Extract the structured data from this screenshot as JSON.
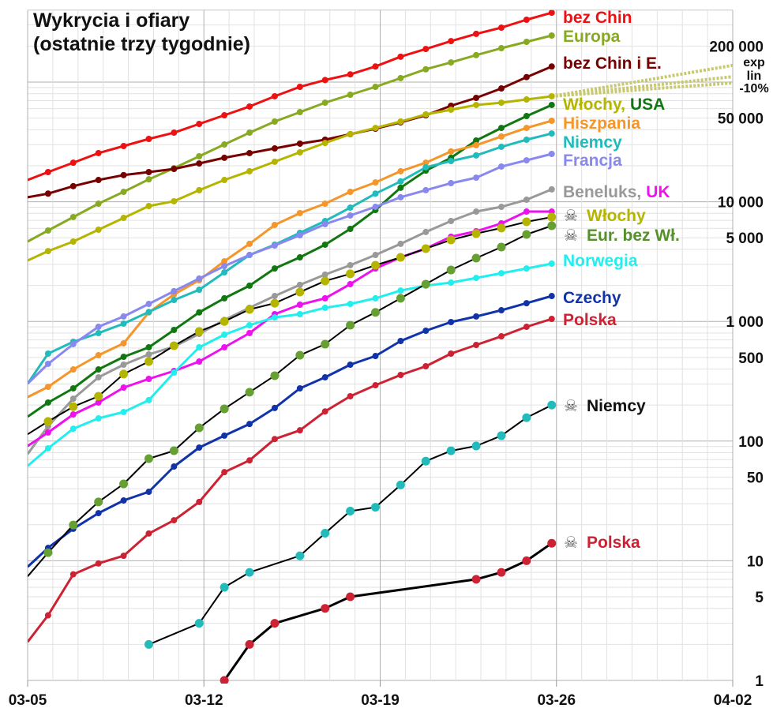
{
  "chart_data": {
    "type": "line",
    "title": "Wykrycia i ofiary",
    "subtitle": "(ostatnie trzy tygodnie)",
    "y_scale": "log",
    "ylim": [
      1,
      400000
    ],
    "xlim": [
      "03-05",
      "04-02"
    ],
    "grid": true,
    "x_ticks": [
      "03-05",
      "03-12",
      "03-19",
      "03-26",
      "04-02"
    ],
    "y_ticks": [
      {
        "value": 200000,
        "label": "200 000"
      },
      {
        "value": 50000,
        "label": "50 000"
      },
      {
        "value": 10000,
        "label": "10 000"
      },
      {
        "value": 5000,
        "label": "5 000"
      },
      {
        "value": 1000,
        "label": "1 000"
      },
      {
        "value": 500,
        "label": "500"
      },
      {
        "value": 100,
        "label": "100"
      },
      {
        "value": 50,
        "label": "50"
      },
      {
        "value": 10,
        "label": "10"
      },
      {
        "value": 5,
        "label": "5"
      },
      {
        "value": 1,
        "label": "1"
      }
    ],
    "dates": [
      "03-05",
      "03-06",
      "03-07",
      "03-08",
      "03-09",
      "03-10",
      "03-11",
      "03-12",
      "03-13",
      "03-14",
      "03-15",
      "03-16",
      "03-17",
      "03-18",
      "03-19",
      "03-20",
      "03-21",
      "03-22",
      "03-23",
      "03-24",
      "03-25",
      "03-26"
    ],
    "series": [
      {
        "name": "bez Chin",
        "kind": "cases",
        "color": "#ee1111",
        "values": [
          15200,
          17700,
          21200,
          25500,
          29200,
          33500,
          37800,
          44700,
          52800,
          62500,
          76100,
          91300,
          104000,
          116000,
          135000,
          163000,
          189000,
          220000,
          253000,
          285000,
          332000,
          380000
        ]
      },
      {
        "name": "Europa",
        "kind": "cases",
        "color": "#88aa22",
        "values": [
          4650,
          5750,
          7450,
          9640,
          12100,
          15400,
          19100,
          24000,
          30100,
          37800,
          46800,
          56100,
          67300,
          78400,
          91300,
          108000,
          128000,
          146000,
          168000,
          192000,
          217000,
          245000
        ]
      },
      {
        "name": "bez Chin i E.",
        "kind": "cases",
        "color": "#770000",
        "values": [
          10900,
          11700,
          13500,
          15200,
          16700,
          17700,
          18800,
          20900,
          23300,
          25500,
          27900,
          30600,
          33000,
          36700,
          40800,
          46100,
          52800,
          63400,
          73800,
          88500,
          110000,
          135000
        ]
      },
      {
        "name": "Włochy",
        "kind": "cases",
        "color": "#b5b500",
        "values": [
          3230,
          3870,
          4650,
          5840,
          7330,
          9210,
          10100,
          12500,
          15200,
          18000,
          21600,
          25900,
          31000,
          36700,
          41400,
          46800,
          53700,
          58800,
          64400,
          67300,
          71600,
          76100
        ]
      },
      {
        "name": "USA",
        "kind": "cases",
        "color": "#117711",
        "values": [
          160,
          210,
          276,
          397,
          506,
          608,
          849,
          1190,
          1560,
          1990,
          2770,
          3430,
          4380,
          5930,
          8530,
          13100,
          18200,
          23300,
          32500,
          41400,
          52000,
          64400
        ]
      },
      {
        "name": "Hiszpania",
        "kind": "cases",
        "color": "#f5962a",
        "values": [
          233,
          284,
          397,
          522,
          656,
          1190,
          1680,
          2210,
          3180,
          4450,
          6400,
          8040,
          9640,
          12100,
          14500,
          18000,
          21200,
          26300,
          29700,
          35100,
          41400,
          47500
        ]
      },
      {
        "name": "Niemcy",
        "kind": "cases",
        "color": "#22bbbb",
        "values": [
          302,
          538,
          676,
          799,
          959,
          1200,
          1510,
          1840,
          2570,
          3590,
          4380,
          5500,
          6900,
          8930,
          11700,
          14800,
          19400,
          21900,
          24400,
          28800,
          33000,
          37200
        ]
      },
      {
        "name": "Francja",
        "kind": "cases",
        "color": "#8888ee",
        "values": [
          302,
          442,
          646,
          902,
          1100,
          1400,
          1790,
          2280,
          2900,
          3590,
          4310,
          5250,
          6500,
          7680,
          9070,
          10900,
          12500,
          14300,
          15900,
          19700,
          22200,
          25100
        ]
      },
      {
        "name": "Beneluks",
        "kind": "cases",
        "color": "#999999",
        "values": [
          78,
          133,
          226,
          341,
          435,
          530,
          617,
          787,
          1030,
          1300,
          1630,
          2020,
          2460,
          2950,
          3590,
          4450,
          5590,
          6900,
          8280,
          9070,
          10400,
          12700
        ]
      },
      {
        "name": "UK",
        "kind": "cases",
        "color": "#ee11ee",
        "values": [
          91,
          118,
          167,
          210,
          280,
          331,
          385,
          462,
          608,
          799,
          1150,
          1380,
          1560,
          2050,
          2770,
          3430,
          4060,
          5100,
          5670,
          6590,
          8280,
          8280
        ]
      },
      {
        "name": "Norwegia",
        "kind": "cases",
        "color": "#22eeee",
        "values": [
          62,
          87,
          127,
          155,
          175,
          220,
          374,
          608,
          775,
          930,
          1080,
          1150,
          1300,
          1400,
          1560,
          1810,
          1990,
          2110,
          2310,
          2530,
          2770,
          3040
        ]
      },
      {
        "name": "Czechy",
        "kind": "cases",
        "color": "#1133aa",
        "values": [
          8.9,
          12.8,
          18.5,
          25,
          31.9,
          37.7,
          61.3,
          88.3,
          111,
          139,
          189,
          276,
          341,
          435,
          514,
          686,
          836,
          988,
          1100,
          1240,
          1420,
          1630
        ]
      },
      {
        "name": "Polska",
        "kind": "cases",
        "color": "#cc2233",
        "values": [
          2.1,
          3.5,
          7.7,
          9.5,
          11,
          16.9,
          21.8,
          31,
          55,
          69,
          104,
          123,
          177,
          237,
          293,
          357,
          422,
          538,
          636,
          751,
          902,
          1050
        ]
      },
      {
        "name": "☠ Włochy",
        "kind": "deaths",
        "color": "#b5b500",
        "values": [
          114,
          146,
          194,
          237,
          363,
          462,
          626,
          824,
          1000,
          1260,
          1420,
          1760,
          2180,
          2500,
          2950,
          3430,
          4060,
          4800,
          5420,
          6030,
          6800,
          7450
        ]
      },
      {
        "name": "☠ Eur. bez Wł.",
        "kind": "deaths",
        "color": "#66a033",
        "values": [
          7.4,
          11.7,
          19.9,
          31,
          43.9,
          71.4,
          83.1,
          129,
          186,
          256,
          352,
          522,
          646,
          930,
          1190,
          1560,
          2050,
          2690,
          3380,
          4180,
          5330,
          6300
        ]
      },
      {
        "name": "☠ Niemcy",
        "kind": "deaths",
        "color": "#22bbbb",
        "values": [
          null,
          null,
          null,
          null,
          null,
          2,
          null,
          3,
          6,
          8,
          null,
          11,
          17,
          26,
          28,
          43,
          68,
          83,
          91,
          111,
          157,
          200
        ]
      },
      {
        "name": "☠ Polska",
        "kind": "deaths",
        "color": "#cc2233",
        "values": [
          null,
          null,
          null,
          null,
          null,
          null,
          null,
          null,
          1,
          2,
          3,
          null,
          4,
          5,
          null,
          null,
          null,
          null,
          7,
          8,
          10,
          14
        ]
      }
    ],
    "projections": {
      "base_series": "Włochy",
      "from": "03-26",
      "to": "04-02",
      "color": "#c8c870",
      "lines": [
        {
          "name": "exp",
          "value_end": 138000
        },
        {
          "name": "lin",
          "value_end": 111000
        },
        {
          "name": "-10%",
          "value_end": 98500
        }
      ]
    }
  },
  "legend": {
    "bez_chin": "bez Chin",
    "europa": "Europa",
    "bez_chin_e": "bez Chin i E.",
    "wlochy": "Włochy",
    "comma": ",",
    "usa": "USA",
    "hiszpania": "Hiszpania",
    "niemcy": "Niemcy",
    "francja": "Francja",
    "beneluks": "Beneluks",
    "uk": "UK",
    "d_wlochy": "Włochy",
    "d_eur": "Eur. bez Wł.",
    "norwegia": "Norwegia",
    "czechy": "Czechy",
    "polska": "Polska",
    "d_niemcy": "Niemcy",
    "d_polska": "Polska",
    "skull": "☠",
    "proj_exp": "exp",
    "proj_lin": "lin",
    "proj_10": "-10%"
  }
}
